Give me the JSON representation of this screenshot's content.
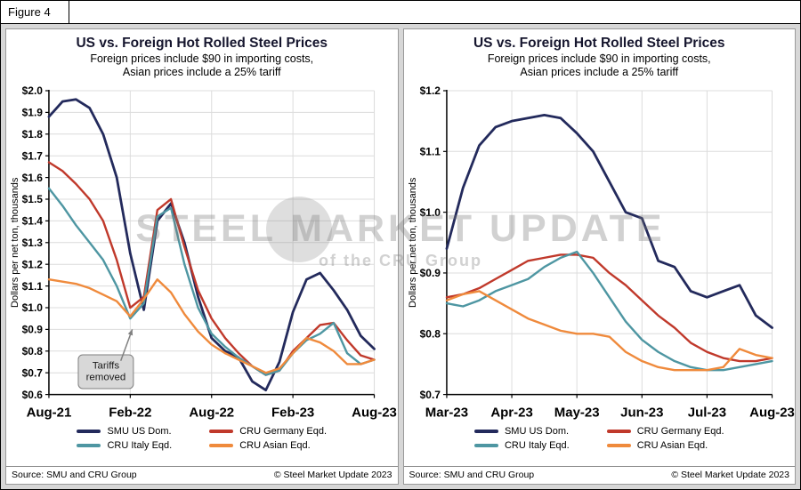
{
  "figure_label": "Figure 4",
  "watermark": {
    "line1": "STEEL MARKET UPDATE",
    "line2": "of the CRU Group"
  },
  "panels": [
    {
      "title": "US vs. Foreign Hot Rolled Steel Prices",
      "subtitle1": "Foreign prices include $90 in importing costs,",
      "subtitle2": "Asian prices include a 25% tariff",
      "source_left": "Source: SMU and CRU Group",
      "source_right": "© Steel Market Update 2023"
    },
    {
      "title": "US vs. Foreign Hot Rolled Steel Prices",
      "subtitle1": "Foreign prices include $90 in importing costs,",
      "subtitle2": "Asian prices include a 25% tariff",
      "source_left": "Source: SMU and CRU Group",
      "source_right": "© Steel Market Update 2023"
    }
  ],
  "chart_data": [
    {
      "type": "line",
      "title": "US vs. Foreign Hot Rolled Steel Prices",
      "subtitle": "Foreign prices include $90 in importing costs, Asian prices include a 25% tariff",
      "ylabel": "Dollars per net ton, thousands",
      "ylim": [
        0.6,
        2.0
      ],
      "grid": true,
      "legend_position": "bottom",
      "yticks": [
        {
          "v": 0.6,
          "label": "$0.6"
        },
        {
          "v": 0.7,
          "label": "$0.7"
        },
        {
          "v": 0.8,
          "label": "$0.8"
        },
        {
          "v": 0.9,
          "label": "$0.9"
        },
        {
          "v": 1.0,
          "label": "$1.0"
        },
        {
          "v": 1.1,
          "label": "$1.1"
        },
        {
          "v": 1.2,
          "label": "$1.2"
        },
        {
          "v": 1.3,
          "label": "$1.3"
        },
        {
          "v": 1.4,
          "label": "$1.4"
        },
        {
          "v": 1.5,
          "label": "$1.5"
        },
        {
          "v": 1.6,
          "label": "$1.6"
        },
        {
          "v": 1.7,
          "label": "$1.7"
        },
        {
          "v": 1.8,
          "label": "$1.8"
        },
        {
          "v": 1.9,
          "label": "$1.9"
        },
        {
          "v": 2.0,
          "label": "$2.0"
        }
      ],
      "xticks": [
        {
          "i": 0,
          "label": "Aug-21"
        },
        {
          "i": 6,
          "label": "Feb-22"
        },
        {
          "i": 12,
          "label": "Aug-22"
        },
        {
          "i": 18,
          "label": "Feb-23"
        },
        {
          "i": 24,
          "label": "Aug-23"
        }
      ],
      "categories": [
        "Aug-21",
        "Sep-21",
        "Oct-21",
        "Nov-21",
        "Dec-21",
        "Jan-22",
        "Feb-22",
        "Mar-22",
        "Apr-22",
        "May-22",
        "Jun-22",
        "Jul-22",
        "Aug-22",
        "Sep-22",
        "Oct-22",
        "Nov-22",
        "Dec-22",
        "Jan-23",
        "Feb-23",
        "Mar-23",
        "Apr-23",
        "May-23",
        "Jun-23",
        "Jul-23",
        "Aug-23"
      ],
      "series": [
        {
          "name": "SMU US Dom.",
          "color": "#232a5c",
          "values": [
            1.88,
            1.95,
            1.96,
            1.92,
            1.8,
            1.6,
            1.25,
            0.99,
            1.4,
            1.48,
            1.3,
            1.05,
            0.86,
            0.8,
            0.77,
            0.66,
            0.62,
            0.75,
            0.98,
            1.13,
            1.16,
            1.08,
            0.99,
            0.87,
            0.81
          ]
        },
        {
          "name": "CRU Germany Eqd.",
          "color": "#c0392b",
          "values": [
            1.67,
            1.63,
            1.57,
            1.5,
            1.4,
            1.22,
            1.0,
            1.05,
            1.45,
            1.5,
            1.28,
            1.08,
            0.95,
            0.86,
            0.79,
            0.73,
            0.69,
            0.71,
            0.8,
            0.86,
            0.92,
            0.93,
            0.85,
            0.78,
            0.76
          ]
        },
        {
          "name": "CRU Italy Eqd.",
          "color": "#4e96a2",
          "values": [
            1.55,
            1.47,
            1.38,
            1.3,
            1.22,
            1.1,
            0.95,
            1.02,
            1.42,
            1.46,
            1.2,
            1.0,
            0.88,
            0.82,
            0.77,
            0.73,
            0.69,
            0.71,
            0.79,
            0.85,
            0.88,
            0.93,
            0.79,
            0.74,
            0.76
          ]
        },
        {
          "name": "CRU Asian Eqd.",
          "color": "#ef8a3c",
          "values": [
            1.13,
            1.12,
            1.11,
            1.09,
            1.06,
            1.03,
            0.96,
            1.04,
            1.13,
            1.07,
            0.97,
            0.89,
            0.83,
            0.79,
            0.76,
            0.73,
            0.7,
            0.72,
            0.79,
            0.86,
            0.84,
            0.8,
            0.74,
            0.74,
            0.76
          ]
        }
      ],
      "annotation": {
        "lines": [
          "Tariffs",
          "removed"
        ],
        "box_i": 4.2,
        "box_v": 0.705,
        "arrow_from_i": 5.3,
        "arrow_from_v": 0.755,
        "arrow_to_i": 6.15,
        "arrow_to_v": 0.9
      }
    },
    {
      "type": "line",
      "title": "US vs. Foreign Hot Rolled Steel Prices",
      "subtitle": "Foreign prices include $90 in importing costs, Asian prices include a 25% tariff",
      "ylabel": "Dollars per net ton, thousands",
      "ylim": [
        0.7,
        1.2
      ],
      "grid": true,
      "legend_position": "bottom",
      "x_unit": "weekly, Mar-23 through Aug-23",
      "yticks": [
        {
          "v": 0.7,
          "label": "$0.7"
        },
        {
          "v": 0.8,
          "label": "$0.8"
        },
        {
          "v": 0.9,
          "label": "$0.9"
        },
        {
          "v": 1.0,
          "label": "$1.0"
        },
        {
          "v": 1.1,
          "label": "$1.1"
        },
        {
          "v": 1.2,
          "label": "$1.2"
        }
      ],
      "xticks": [
        {
          "i": 0,
          "label": "Mar-23"
        },
        {
          "i": 4,
          "label": "Apr-23"
        },
        {
          "i": 8,
          "label": "May-23"
        },
        {
          "i": 12,
          "label": "Jun-23"
        },
        {
          "i": 16,
          "label": "Jul-23"
        },
        {
          "i": 20,
          "label": "Aug-23"
        }
      ],
      "series": [
        {
          "name": "SMU US Dom.",
          "color": "#232a5c",
          "values": [
            0.94,
            1.04,
            1.11,
            1.14,
            1.15,
            1.155,
            1.16,
            1.155,
            1.13,
            1.1,
            1.05,
            1.0,
            0.99,
            0.92,
            0.91,
            0.87,
            0.86,
            0.87,
            0.88,
            0.83,
            0.81
          ]
        },
        {
          "name": "CRU Germany Eqd.",
          "color": "#c0392b",
          "values": [
            0.86,
            0.865,
            0.875,
            0.89,
            0.905,
            0.92,
            0.925,
            0.93,
            0.93,
            0.925,
            0.9,
            0.88,
            0.855,
            0.83,
            0.81,
            0.785,
            0.77,
            0.76,
            0.755,
            0.755,
            0.76
          ]
        },
        {
          "name": "CRU Italy Eqd.",
          "color": "#4e96a2",
          "values": [
            0.85,
            0.845,
            0.855,
            0.87,
            0.88,
            0.89,
            0.91,
            0.925,
            0.935,
            0.9,
            0.86,
            0.82,
            0.79,
            0.77,
            0.755,
            0.745,
            0.74,
            0.74,
            0.745,
            0.75,
            0.755
          ]
        },
        {
          "name": "CRU Asian Eqd.",
          "color": "#ef8a3c",
          "values": [
            0.855,
            0.865,
            0.87,
            0.855,
            0.84,
            0.825,
            0.815,
            0.805,
            0.8,
            0.8,
            0.795,
            0.77,
            0.755,
            0.745,
            0.74,
            0.74,
            0.74,
            0.745,
            0.775,
            0.765,
            0.76
          ]
        }
      ]
    }
  ]
}
